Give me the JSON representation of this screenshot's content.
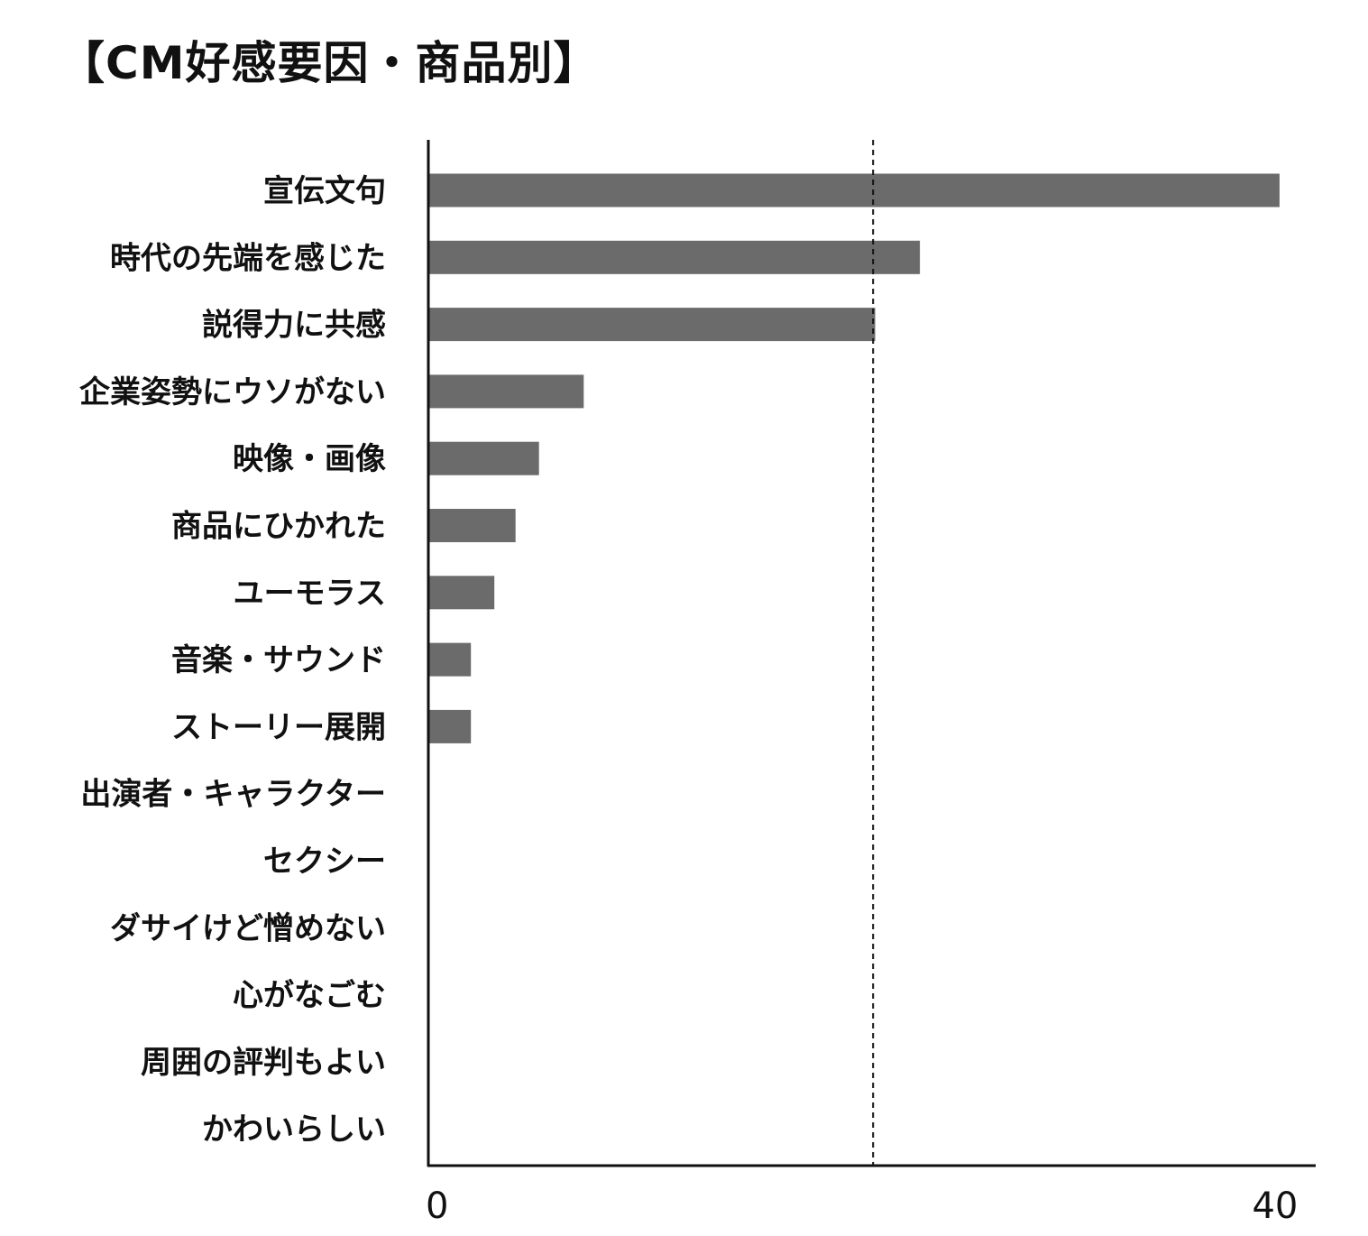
{
  "chart_data": {
    "type": "bar",
    "orientation": "horizontal",
    "title": "【CM好感要因・商品別】",
    "categories": [
      "宣伝文句",
      "時代の先端を感じた",
      "説得力に共感",
      "企業姿勢にウソがない",
      "映像・画像",
      "商品にひかれた",
      "ユーモラス",
      "音楽・サウンド",
      "ストーリー展開",
      "出演者・キャラクター",
      "セクシー",
      "ダサイけど憎めない",
      "心がなごむ",
      "周囲の評判もよい",
      "かわいらしい"
    ],
    "values": [
      40,
      23.1,
      21,
      7.3,
      5.2,
      4.1,
      3.1,
      2,
      2,
      0,
      0,
      0,
      0,
      0,
      0
    ],
    "xlim": [
      0,
      41.7
    ],
    "ticks": [
      0,
      40
    ],
    "tick_labels": [
      "0",
      "40"
    ],
    "reference_line": 20.9,
    "grid": false,
    "legend": "none",
    "bar_color": "#6b6b6b",
    "axis_color": "#111111"
  }
}
